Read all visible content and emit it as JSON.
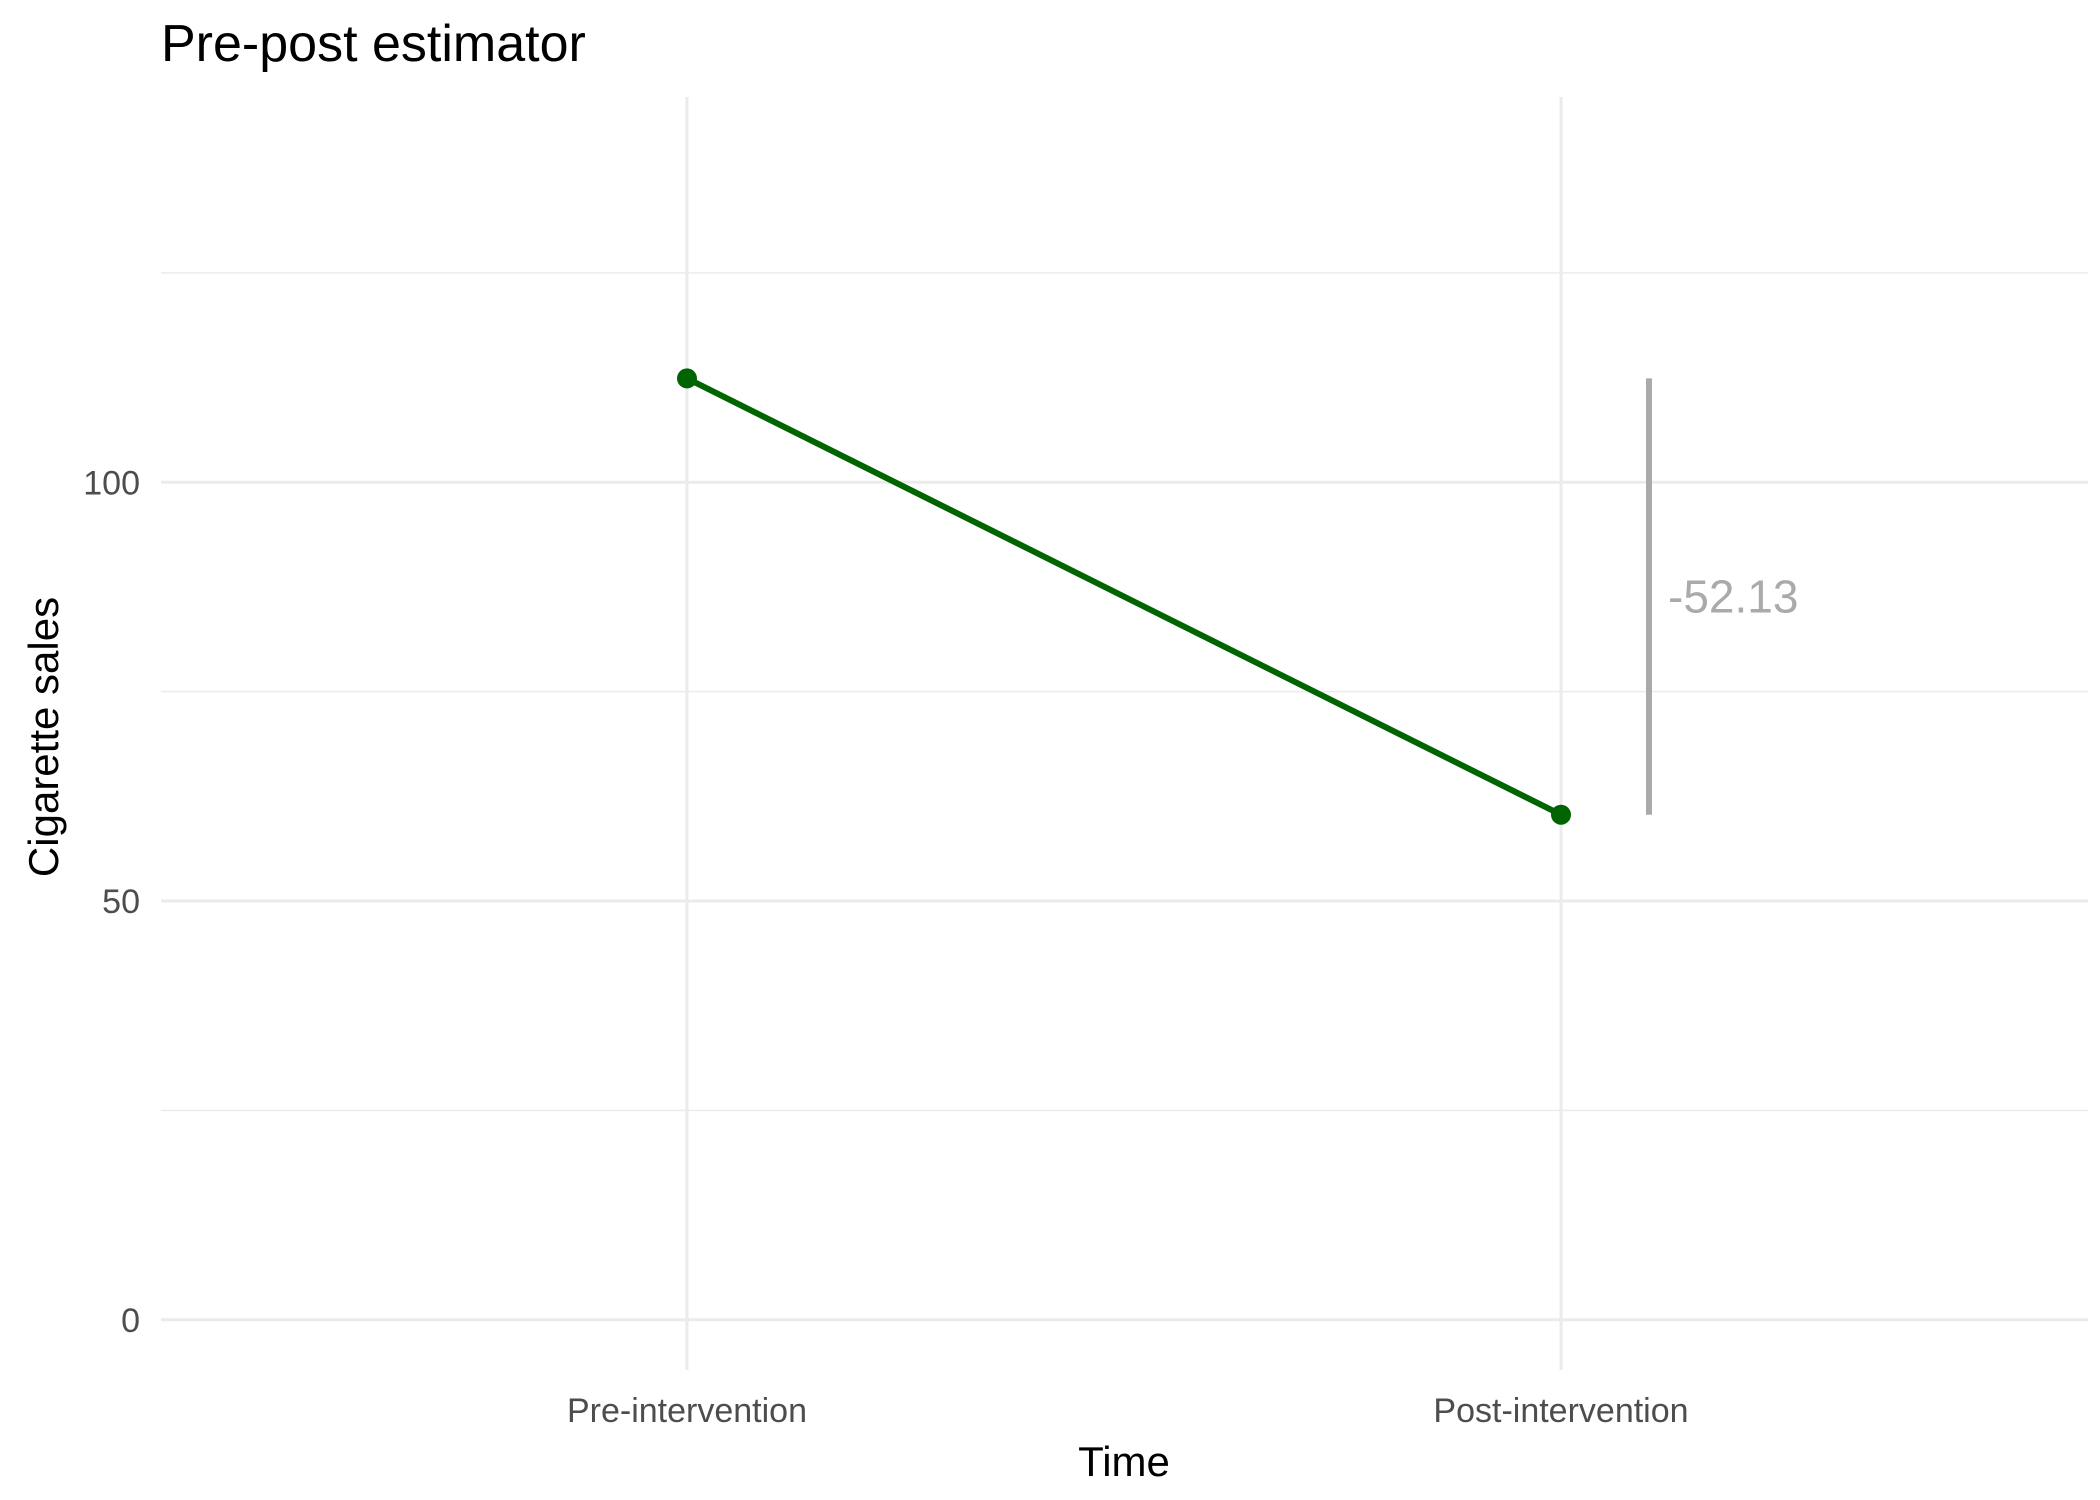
{
  "chart_data": {
    "type": "line",
    "title": "Pre-post estimator",
    "xlabel": "Time",
    "ylabel": "Cigarette sales",
    "categories": [
      "Pre-intervention",
      "Post-intervention"
    ],
    "series": [
      {
        "values": [
          112.4,
          60.3
        ],
        "color": "#006400"
      }
    ],
    "yticks": [
      0,
      50,
      100
    ],
    "ylim": [
      -6,
      146
    ],
    "grid": true,
    "annotation": {
      "text": "-52.13",
      "from": 112.4,
      "to": 60.3,
      "color": "#aaaaaa"
    },
    "colors": {
      "gridline": "#ebebeb",
      "tick_text": "#4d4d4d"
    }
  }
}
